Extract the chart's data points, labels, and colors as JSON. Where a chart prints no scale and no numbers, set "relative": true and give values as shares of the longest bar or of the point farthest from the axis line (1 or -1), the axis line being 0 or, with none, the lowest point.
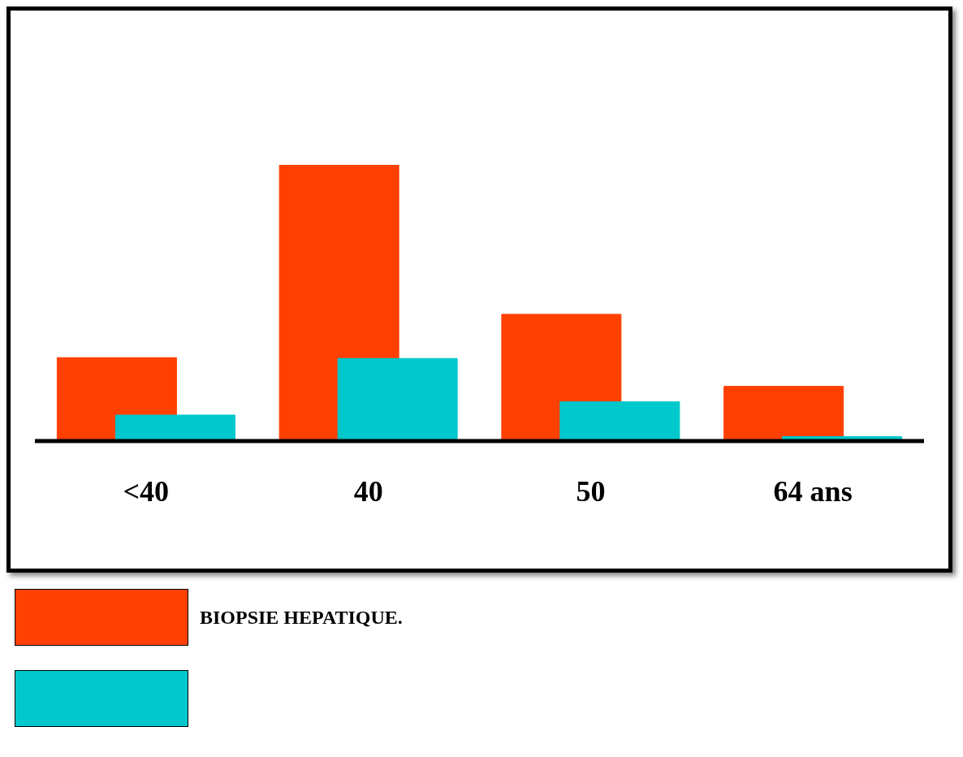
{
  "chart_data": {
    "type": "bar",
    "relative": true,
    "categories": [
      "<40",
      "40",
      "50",
      "64 ans"
    ],
    "series": [
      {
        "name": "BIOPSIE HEPATIQUE.",
        "color": "#ff4000",
        "values": [
          0.302,
          1,
          0.459,
          0.198
        ]
      },
      {
        "color": "#00c8cc",
        "values": [
          0.094,
          0.299,
          0.142,
          0.016
        ]
      }
    ],
    "legend": "bottom",
    "grid": false
  }
}
